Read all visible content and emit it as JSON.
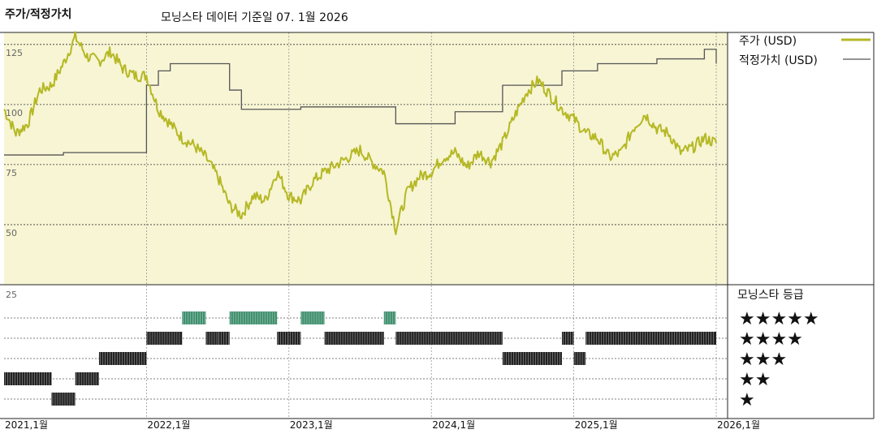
{
  "chart_title": "주가/적정가치",
  "subtitle": "모닝스타 데이터 기준일 07. 1월 2026",
  "colors": {
    "price": "#b5b824",
    "fair_value": "#555555",
    "panel_bg": "#f7f5d4",
    "rating_black": "#222222",
    "rating_green": "#3f8f6e",
    "grid": "#333333"
  },
  "chart_data": [
    {
      "type": "line",
      "y_ticks": [
        "125",
        "100",
        "75",
        "50"
      ],
      "ylim": [
        25,
        130
      ],
      "x_tick_labels": [
        "2021,1월",
        "2022,1월",
        "2023,1월",
        "2024,1월",
        "2025,1월",
        "2026,1월"
      ],
      "xlim": [
        "2021-01",
        "2026-01"
      ],
      "grid": true,
      "legend_position": "top-right",
      "series": [
        {
          "name": "주가 (USD)",
          "x": [
            "2021-01",
            "2021-02",
            "2021-03",
            "2021-04",
            "2021-05",
            "2021-06",
            "2021-07",
            "2021-08",
            "2021-09",
            "2021-10",
            "2021-11",
            "2021-12",
            "2022-01",
            "2022-02",
            "2022-03",
            "2022-04",
            "2022-05",
            "2022-06",
            "2022-07",
            "2022-08",
            "2022-09",
            "2022-10",
            "2022-11",
            "2022-12",
            "2023-01",
            "2023-02",
            "2023-03",
            "2023-04",
            "2023-05",
            "2023-06",
            "2023-07",
            "2023-08",
            "2023-09",
            "2023-10",
            "2023-11",
            "2023-12",
            "2024-01",
            "2024-02",
            "2024-03",
            "2024-04",
            "2024-05",
            "2024-06",
            "2024-07",
            "2024-08",
            "2024-09",
            "2024-10",
            "2024-11",
            "2024-12",
            "2025-01",
            "2025-02",
            "2025-03",
            "2025-04",
            "2025-05",
            "2025-06",
            "2025-07",
            "2025-08",
            "2025-09",
            "2025-10",
            "2025-11",
            "2025-12",
            "2026-01"
          ],
          "values": [
            98,
            88,
            92,
            106,
            108,
            117,
            128,
            120,
            118,
            122,
            115,
            112,
            112,
            98,
            92,
            86,
            83,
            78,
            70,
            58,
            54,
            62,
            60,
            72,
            62,
            60,
            68,
            72,
            75,
            78,
            81,
            76,
            72,
            48,
            64,
            70,
            72,
            78,
            80,
            74,
            80,
            76,
            84,
            95,
            105,
            110,
            104,
            98,
            94,
            88,
            86,
            78,
            80,
            90,
            96,
            90,
            88,
            80,
            82,
            86,
            84
          ]
        },
        {
          "name": "적정가치 (USD)",
          "x": [
            "2021-01",
            "2021-05",
            "2021-06",
            "2021-12",
            "2022-01",
            "2022-02",
            "2022-03",
            "2022-05",
            "2022-08",
            "2022-09",
            "2023-01",
            "2023-02",
            "2023-05",
            "2023-09",
            "2023-10",
            "2024-02",
            "2024-03",
            "2024-06",
            "2024-07",
            "2024-11",
            "2024-12",
            "2025-02",
            "2025-03",
            "2025-07",
            "2025-08",
            "2025-11",
            "2025-12",
            "2026-01"
          ],
          "values": [
            79,
            79,
            80,
            80,
            108,
            114,
            117,
            117,
            106,
            98,
            98,
            99,
            99,
            99,
            92,
            92,
            97,
            97,
            108,
            108,
            114,
            114,
            117,
            117,
            119,
            119,
            123,
            117
          ]
        }
      ]
    },
    {
      "type": "timeline",
      "title": "모닝스타 등급",
      "y_ticks": [
        "25"
      ],
      "levels": [
        "★★★★★",
        "★★★★",
        "★★★",
        "★★",
        "★"
      ],
      "segments": [
        {
          "stars": 2,
          "start": "2021-01",
          "end": "2021-05"
        },
        {
          "stars": 1,
          "start": "2021-05",
          "end": "2021-07"
        },
        {
          "stars": 2,
          "start": "2021-07",
          "end": "2021-09"
        },
        {
          "stars": 3,
          "start": "2021-09",
          "end": "2022-01"
        },
        {
          "stars": 4,
          "start": "2022-01",
          "end": "2022-04"
        },
        {
          "stars": 5,
          "start": "2022-04",
          "end": "2022-05"
        },
        {
          "stars": 5,
          "start": "2022-05",
          "end": "2022-06"
        },
        {
          "stars": 4,
          "start": "2022-06",
          "end": "2022-07"
        },
        {
          "stars": 4,
          "start": "2022-07",
          "end": "2022-08"
        },
        {
          "stars": 5,
          "start": "2022-08",
          "end": "2022-12"
        },
        {
          "stars": 4,
          "start": "2022-12",
          "end": "2023-01"
        },
        {
          "stars": 4,
          "start": "2023-01",
          "end": "2023-02"
        },
        {
          "stars": 5,
          "start": "2023-02",
          "end": "2023-04"
        },
        {
          "stars": 4,
          "start": "2023-04",
          "end": "2023-09"
        },
        {
          "stars": 5,
          "start": "2023-09",
          "end": "2023-10"
        },
        {
          "stars": 4,
          "start": "2023-10",
          "end": "2024-07"
        },
        {
          "stars": 3,
          "start": "2024-07",
          "end": "2024-12"
        },
        {
          "stars": 4,
          "start": "2024-12",
          "end": "2025-01"
        },
        {
          "stars": 3,
          "start": "2025-01",
          "end": "2025-02"
        },
        {
          "stars": 4,
          "start": "2025-02",
          "end": "2026-01"
        }
      ]
    }
  ]
}
